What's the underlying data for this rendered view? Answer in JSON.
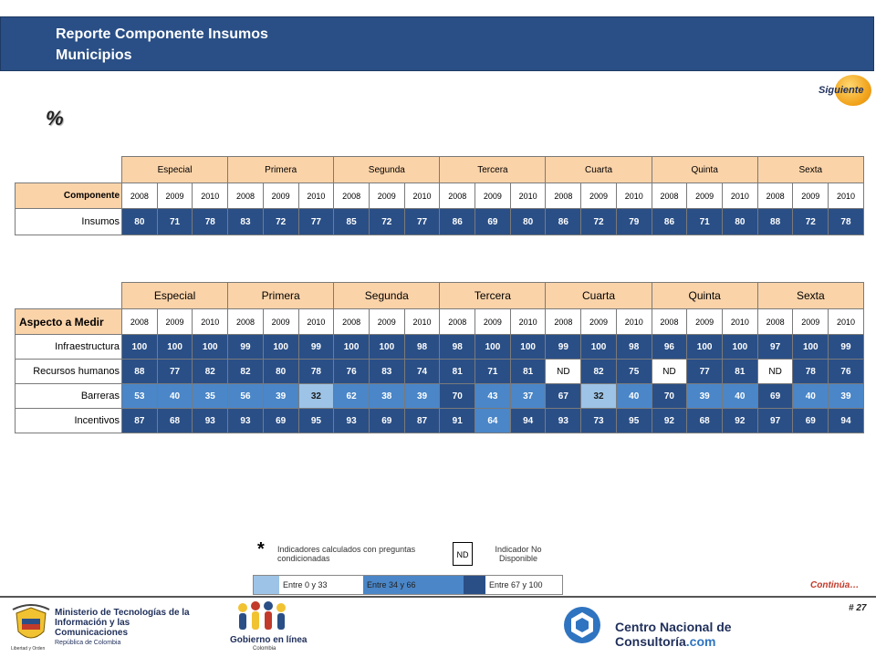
{
  "header": {
    "line1": "Reporte Componente Insumos",
    "line2": "Municipios"
  },
  "nav": {
    "next_label": "Siguiente",
    "continua_label": "Continúa…"
  },
  "unit_symbol": "%",
  "categories": [
    "Especial",
    "Primera",
    "Segunda",
    "Tercera",
    "Cuarta",
    "Quinta",
    "Sexta"
  ],
  "years": [
    "2008",
    "2009",
    "2010"
  ],
  "table1": {
    "row_label": "Componente",
    "rows": [
      {
        "label": "Insumos",
        "values": [
          "80",
          "71",
          "78",
          "83",
          "72",
          "77",
          "85",
          "72",
          "77",
          "86",
          "69",
          "80",
          "86",
          "72",
          "79",
          "86",
          "71",
          "80",
          "88",
          "72",
          "78"
        ]
      }
    ]
  },
  "table2": {
    "row_label": "Aspecto a Medir",
    "rows": [
      {
        "label": "Infraestructura",
        "values": [
          "100",
          "100",
          "100",
          "99",
          "100",
          "99",
          "100",
          "100",
          "98",
          "98",
          "100",
          "100",
          "99",
          "100",
          "98",
          "96",
          "100",
          "100",
          "97",
          "100",
          "99"
        ]
      },
      {
        "label": "Recursos humanos",
        "values": [
          "88",
          "77",
          "82",
          "82",
          "80",
          "78",
          "76",
          "83",
          "74",
          "81",
          "71",
          "81",
          "ND",
          "82",
          "75",
          "ND",
          "77",
          "81",
          "ND",
          "78",
          "76"
        ]
      },
      {
        "label": "Barreras",
        "values": [
          "53",
          "40",
          "35",
          "56",
          "39",
          "32",
          "62",
          "38",
          "39",
          "70",
          "43",
          "37",
          "67",
          "32",
          "40",
          "70",
          "39",
          "40",
          "69",
          "40",
          "39"
        ]
      },
      {
        "label": "Incentivos",
        "values": [
          "87",
          "68",
          "93",
          "93",
          "69",
          "95",
          "93",
          "69",
          "87",
          "91",
          "64",
          "94",
          "93",
          "73",
          "95",
          "92",
          "68",
          "92",
          "97",
          "69",
          "94"
        ]
      }
    ]
  },
  "notes": {
    "asterisk": "*",
    "asterisk_text": "Indicadores calculados con preguntas condicionadas",
    "nd_box": "ND",
    "nd_text": "Indicador No Disponible"
  },
  "legend": [
    {
      "label": "Entre 0 y 33",
      "color": "#9dc3e6"
    },
    {
      "label": "Entre 34 y 66",
      "color": "#4a86c8"
    },
    {
      "label": "Entre 67 y 100",
      "color": "#2a4f86"
    }
  ],
  "page_number": "# 27",
  "footer": {
    "ministry_line1": "Ministerio de Tecnologías de la",
    "ministry_line2": "Información y las Comunicaciones",
    "ministry_line3": "República de Colombia",
    "ministry_motto": "Libertad y Orden",
    "gobierno_text": "Gobierno en línea",
    "gobierno_sub": "Colombia",
    "cnc_text": "Centro Nacional de Consultoría",
    "cnc_suffix": ".com"
  }
}
